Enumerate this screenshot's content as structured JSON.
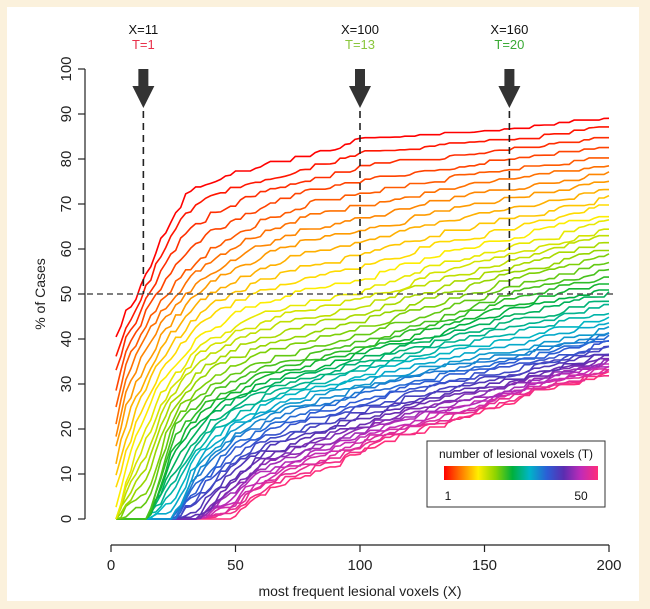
{
  "chart_data": {
    "type": "line",
    "xlabel": "most frequent lesional voxels (X)",
    "ylabel": "% of Cases",
    "xlim": [
      0,
      200
    ],
    "ylim": [
      0,
      100
    ],
    "x_ticks": [
      0,
      50,
      100,
      150,
      200
    ],
    "y_ticks": [
      0,
      10,
      20,
      30,
      40,
      50,
      60,
      70,
      80,
      90,
      100
    ],
    "reference_line": {
      "y": 50,
      "style": "dashed"
    },
    "annotations": [
      {
        "x": 11,
        "x_label": "X=11",
        "t_label": "T=1",
        "t_color": "#e8304a",
        "arrow_x": 13
      },
      {
        "x": 100,
        "x_label": "X=100",
        "t_label": "T=13",
        "t_color": "#8ac63c",
        "arrow_x": 100
      },
      {
        "x": 160,
        "x_label": "X=160",
        "t_label": "T=20",
        "t_color": "#3aaa35",
        "arrow_x": 160
      }
    ],
    "legend": {
      "title": "number of lesional voxels (T)",
      "min_label": "1",
      "max_label": "50",
      "placement": "bottom-right",
      "colors": [
        "#ff0000",
        "#ff7a00",
        "#ffee00",
        "#8fd400",
        "#00b03c",
        "#00b5c8",
        "#2a5fd6",
        "#5b2db0",
        "#c02bb8",
        "#ff2d7a"
      ]
    },
    "series_count": 50,
    "series": [
      {
        "T": 1,
        "points": [
          [
            2,
            40
          ],
          [
            5,
            45
          ],
          [
            11,
            50
          ],
          [
            20,
            62
          ],
          [
            30,
            72
          ],
          [
            40,
            75
          ],
          [
            50,
            77
          ],
          [
            75,
            80
          ],
          [
            100,
            84
          ],
          [
            130,
            85
          ],
          [
            160,
            86
          ],
          [
            200,
            89
          ]
        ]
      },
      {
        "T": 5,
        "points": [
          [
            2,
            25
          ],
          [
            6,
            35
          ],
          [
            15,
            44
          ],
          [
            25,
            52
          ],
          [
            40,
            60
          ],
          [
            60,
            66
          ],
          [
            80,
            70
          ],
          [
            100,
            72
          ],
          [
            140,
            76
          ],
          [
            200,
            80
          ]
        ]
      },
      {
        "T": 13,
        "points": [
          [
            2,
            0
          ],
          [
            10,
            15
          ],
          [
            20,
            28
          ],
          [
            35,
            38
          ],
          [
            50,
            43
          ],
          [
            70,
            47
          ],
          [
            100,
            50
          ],
          [
            130,
            56
          ],
          [
            160,
            60
          ],
          [
            200,
            66
          ]
        ]
      },
      {
        "T": 20,
        "points": [
          [
            2,
            0
          ],
          [
            15,
            0
          ],
          [
            25,
            20
          ],
          [
            40,
            28
          ],
          [
            60,
            33
          ],
          [
            80,
            36
          ],
          [
            100,
            39
          ],
          [
            130,
            44
          ],
          [
            160,
            50
          ],
          [
            200,
            55
          ]
        ]
      },
      {
        "T": 30,
        "points": [
          [
            2,
            0
          ],
          [
            25,
            0
          ],
          [
            35,
            12
          ],
          [
            50,
            20
          ],
          [
            70,
            25
          ],
          [
            100,
            30
          ],
          [
            130,
            34
          ],
          [
            160,
            37
          ],
          [
            200,
            42
          ]
        ]
      },
      {
        "T": 40,
        "points": [
          [
            2,
            0
          ],
          [
            35,
            0
          ],
          [
            45,
            6
          ],
          [
            60,
            13
          ],
          [
            80,
            17
          ],
          [
            100,
            21
          ],
          [
            130,
            26
          ],
          [
            160,
            30
          ],
          [
            200,
            36
          ]
        ]
      },
      {
        "T": 50,
        "points": [
          [
            2,
            0
          ],
          [
            49,
            0
          ],
          [
            55,
            4
          ],
          [
            70,
            8
          ],
          [
            90,
            12
          ],
          [
            110,
            17
          ],
          [
            140,
            22
          ],
          [
            170,
            28
          ],
          [
            200,
            32
          ]
        ]
      }
    ]
  }
}
